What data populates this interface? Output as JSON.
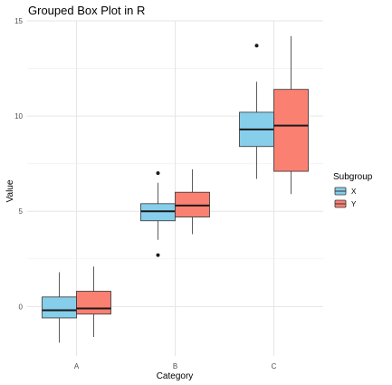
{
  "chart_data": {
    "type": "boxplot",
    "title": "Grouped Box Plot in R",
    "xlabel": "Category",
    "ylabel": "Value",
    "categories": [
      "A",
      "B",
      "C"
    ],
    "ylim": [
      -2.6,
      15.0
    ],
    "yticks": [
      0,
      5,
      10,
      15
    ],
    "grid": true,
    "legend": {
      "title": "Subgroup",
      "position": "right"
    },
    "series": [
      {
        "name": "X",
        "color": "#87CEEB",
        "boxes": [
          {
            "category": "A",
            "min": -1.9,
            "q1": -0.6,
            "median": -0.2,
            "q3": 0.5,
            "max": 1.8,
            "outliers": []
          },
          {
            "category": "B",
            "min": 3.5,
            "q1": 4.5,
            "median": 5.0,
            "q3": 5.4,
            "max": 6.5,
            "outliers": [
              7.0,
              2.7
            ]
          },
          {
            "category": "C",
            "min": 6.7,
            "q1": 8.4,
            "median": 9.3,
            "q3": 10.2,
            "max": 11.8,
            "outliers": [
              13.7
            ]
          }
        ]
      },
      {
        "name": "Y",
        "color": "#FA8072",
        "boxes": [
          {
            "category": "A",
            "min": -1.6,
            "q1": -0.4,
            "median": -0.1,
            "q3": 0.8,
            "max": 2.1,
            "outliers": []
          },
          {
            "category": "B",
            "min": 3.8,
            "q1": 4.7,
            "median": 5.3,
            "q3": 6.0,
            "max": 7.2,
            "outliers": []
          },
          {
            "category": "C",
            "min": 5.9,
            "q1": 7.1,
            "median": 9.5,
            "q3": 11.4,
            "max": 14.2,
            "outliers": []
          }
        ]
      }
    ]
  }
}
